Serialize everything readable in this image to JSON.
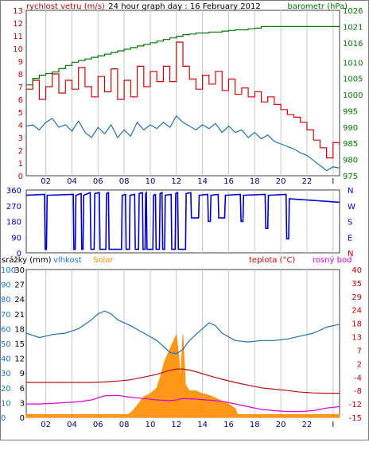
{
  "colors": {
    "wind": "#dd0000",
    "wind_dir": "#0000cc",
    "baro": "#007700",
    "humidity": "#1e73b4",
    "temperature": "#b81010",
    "dewpoint": "#dd00dd",
    "solar": "#ff8c00",
    "label_blue": "#1874cd",
    "grid": "#c8c8c8"
  },
  "chart_data": [
    {
      "type": "line",
      "title": "24 hour graph day : 16 February 2012",
      "x_ticks": [
        "02",
        "04",
        "06",
        "08",
        "10",
        "12",
        "14",
        "16",
        "18",
        "20",
        "22",
        "I"
      ],
      "x_range": [
        0,
        24
      ],
      "y_left_label": "rychlost vetru (m/s)",
      "y_left_ticks": [
        0,
        1,
        2,
        3,
        4,
        5,
        6,
        7,
        8,
        9,
        10,
        11,
        12,
        13
      ],
      "y_left_range": [
        0,
        13
      ],
      "y_right_label": "barometr (hPa)",
      "y_right_ticks": [
        975,
        980,
        985,
        990,
        995,
        1000,
        1005,
        1010,
        1016,
        1021,
        1026
      ],
      "y_right_range": [
        975,
        1026
      ],
      "series": [
        {
          "name": "wind gust",
          "axis": "left",
          "x": [
            0,
            0.5,
            1,
            1.5,
            2,
            2.5,
            3,
            3.5,
            4,
            4.5,
            5,
            5.5,
            6,
            6.5,
            7,
            7.5,
            8,
            8.5,
            9,
            9.5,
            10,
            10.5,
            11,
            11.5,
            12,
            12.5,
            13,
            13.5,
            14,
            14.5,
            15,
            15.5,
            16,
            16.5,
            17,
            17.5,
            18,
            18.5,
            19,
            19.5,
            20,
            20.5,
            21,
            21.5,
            22,
            22.5,
            23,
            23.5,
            24
          ],
          "values": [
            6.8,
            7.5,
            6.0,
            7.0,
            8.0,
            6.5,
            7.5,
            6.8,
            8.5,
            7.0,
            6.2,
            7.8,
            6.6,
            8.4,
            6.0,
            7.5,
            6.2,
            8.6,
            7.0,
            8.2,
            7.4,
            8.6,
            7.4,
            10.5,
            8.6,
            7.6,
            6.8,
            7.9,
            7.2,
            8.2,
            6.7,
            7.6,
            6.4,
            6.9,
            6.2,
            6.6,
            5.8,
            6.2,
            5.6,
            5.2,
            4.8,
            4.6,
            4.2,
            3.6,
            2.8,
            2.2,
            1.4,
            2.6,
            2.4
          ]
        },
        {
          "name": "wind average",
          "axis": "left",
          "x": [
            0,
            0.5,
            1,
            1.5,
            2,
            2.5,
            3,
            3.5,
            4,
            4.5,
            5,
            5.5,
            6,
            6.5,
            7,
            7.5,
            8,
            8.5,
            9,
            9.5,
            10,
            10.5,
            11,
            11.5,
            12,
            12.5,
            13,
            13.5,
            14,
            14.5,
            15,
            15.5,
            16,
            16.5,
            17,
            17.5,
            18,
            18.5,
            19,
            19.5,
            20,
            20.5,
            21,
            21.5,
            22,
            22.5,
            23,
            23.5,
            24
          ],
          "values": [
            3.9,
            4.0,
            3.6,
            4.2,
            4.5,
            3.8,
            4.0,
            3.5,
            4.3,
            3.4,
            3.0,
            3.8,
            3.3,
            4.0,
            3.0,
            3.6,
            3.1,
            4.2,
            3.6,
            4.0,
            3.7,
            4.2,
            3.8,
            4.7,
            4.2,
            3.9,
            3.6,
            4.0,
            3.7,
            4.1,
            3.4,
            3.9,
            3.4,
            3.6,
            3.0,
            3.4,
            2.9,
            3.2,
            2.7,
            2.5,
            2.3,
            2.1,
            1.8,
            1.6,
            1.2,
            0.8,
            0.4,
            0.7,
            0.6
          ]
        },
        {
          "name": "pressure",
          "axis": "right",
          "step": true,
          "x": [
            0,
            0.5,
            1,
            1.5,
            2,
            2.5,
            3,
            3.5,
            4,
            4.5,
            5,
            5.5,
            6,
            6.5,
            7,
            7.5,
            8,
            8.5,
            9,
            9.5,
            10,
            10.5,
            11,
            11.5,
            12,
            12.5,
            13,
            14,
            15,
            15.5,
            16,
            17,
            17.5,
            18,
            19,
            20,
            21,
            22,
            23,
            24
          ],
          "values": [
            1003,
            1005,
            1006,
            1006.5,
            1007,
            1008,
            1009,
            1010,
            1010.5,
            1011,
            1011.5,
            1012,
            1012.5,
            1013,
            1013.5,
            1014,
            1014.5,
            1015,
            1015.5,
            1016,
            1016.5,
            1017,
            1017.5,
            1018,
            1018.5,
            1018.7,
            1019,
            1019.3,
            1019.6,
            1019.8,
            1020,
            1020.3,
            1020.5,
            1021,
            1021,
            1021,
            1021,
            1021,
            1021,
            1021
          ]
        }
      ]
    },
    {
      "type": "line",
      "title": "",
      "y_left_ticks": [
        0,
        90,
        180,
        270,
        360
      ],
      "y_range": [
        0,
        360
      ],
      "y_right_ticks": [
        "N",
        "W",
        "S",
        "E",
        "N"
      ],
      "series": [
        {
          "name": "wind direction",
          "x": [
            0,
            1.4,
            1.45,
            1.55,
            1.6,
            3.6,
            3.65,
            3.75,
            3.8,
            4.2,
            4.25,
            4.35,
            4.4,
            4.9,
            4.95,
            5.2,
            5.25,
            5.6,
            5.65,
            6.1,
            6.15,
            6.3,
            6.35,
            7.3,
            7.35,
            7.6,
            7.65,
            7.9,
            7.95,
            8.3,
            8.35,
            8.6,
            8.65,
            8.9,
            8.95,
            9.1,
            9.15,
            9.2,
            9.25,
            9.7,
            9.75,
            9.9,
            9.95,
            10.2,
            10.25,
            10.4,
            10.45,
            10.6,
            10.65,
            11.1,
            11.15,
            11.4,
            11.45,
            11.6,
            11.65,
            12.2,
            12.25,
            12.6,
            12.65,
            13.2,
            13.25,
            13.9,
            13.95,
            14.1,
            14.15,
            14.7,
            14.75,
            15.2,
            15.25,
            16.4,
            16.45,
            16.6,
            16.65,
            18.3,
            18.35,
            18.5,
            18.55,
            19.9,
            19.95,
            20.1,
            20.15,
            24
          ],
          "values": [
            330,
            335,
            20,
            20,
            330,
            335,
            20,
            20,
            330,
            340,
            20,
            20,
            330,
            345,
            20,
            20,
            340,
            345,
            20,
            20,
            340,
            345,
            20,
            20,
            330,
            335,
            20,
            20,
            330,
            335,
            20,
            20,
            340,
            345,
            20,
            20,
            340,
            345,
            20,
            20,
            330,
            335,
            20,
            20,
            340,
            345,
            20,
            20,
            330,
            335,
            20,
            20,
            340,
            345,
            20,
            20,
            340,
            345,
            200,
            200,
            330,
            335,
            180,
            180,
            330,
            335,
            200,
            200,
            330,
            335,
            180,
            180,
            330,
            335,
            140,
            140,
            330,
            335,
            80,
            80,
            310,
            290
          ]
        }
      ]
    },
    {
      "type": "line",
      "title": "",
      "x_ticks": [
        "02",
        "04",
        "06",
        "08",
        "10",
        "12",
        "14",
        "16",
        "18",
        "20",
        "22",
        "I"
      ],
      "labels_left": [
        "srážky (mm)",
        "vlhkost",
        "Solar"
      ],
      "labels_right": [
        "teplota (°C)",
        "rosný bod"
      ],
      "y_left_humidity_ticks": [
        0,
        10,
        20,
        30,
        40,
        50,
        60,
        70,
        80,
        90,
        100
      ],
      "y_left_rain_ticks": [
        0,
        3,
        6,
        9,
        12,
        15,
        18,
        21,
        24,
        27,
        30
      ],
      "y_right_temp_ticks": [
        -15,
        -12,
        -8,
        -4,
        2,
        7,
        13,
        18,
        24,
        29,
        35,
        40
      ],
      "y_right_range": [
        -15,
        40
      ],
      "series": [
        {
          "name": "humidity",
          "x": [
            0,
            1,
            2,
            3,
            4,
            5,
            5.5,
            6,
            6.5,
            7,
            8,
            9,
            10,
            10.5,
            11,
            11.5,
            12,
            12.5,
            13,
            13.5,
            14,
            14.5,
            15,
            16,
            17,
            18,
            19,
            20,
            21,
            22,
            23,
            24
          ],
          "values": [
            57,
            54,
            56,
            57,
            60,
            66,
            70,
            72,
            70,
            66,
            62,
            57,
            52,
            48,
            44,
            43,
            46,
            52,
            56,
            60,
            64,
            62,
            57,
            52,
            51,
            52,
            52,
            53,
            55,
            57,
            61,
            63
          ]
        },
        {
          "name": "temperature",
          "x": [
            0,
            1,
            2,
            3,
            4,
            5,
            6,
            7,
            8,
            9,
            10,
            10.5,
            11,
            11.5,
            12,
            12.5,
            13,
            14,
            15,
            16,
            17,
            18,
            19,
            20,
            21,
            22,
            23,
            24
          ],
          "values": [
            -2,
            -2,
            -2,
            -2,
            -2,
            -2,
            -1.8,
            -1.5,
            -1,
            0,
            1,
            1.8,
            2.5,
            3,
            3,
            2.6,
            2,
            0.5,
            -0.8,
            -2,
            -3,
            -4,
            -4.5,
            -5,
            -5.6,
            -5.9,
            -6,
            -6
          ]
        },
        {
          "name": "dewpoint",
          "x": [
            0,
            1,
            2,
            3,
            4,
            5,
            6,
            7,
            8,
            9,
            10,
            11,
            11.5,
            12,
            13,
            14,
            15,
            16,
            17,
            18,
            19,
            20,
            21,
            22,
            23,
            24
          ],
          "values": [
            -10,
            -10,
            -9.8,
            -9.5,
            -9.2,
            -8.5,
            -7,
            -6.8,
            -7.5,
            -8,
            -8.5,
            -8.8,
            -8.5,
            -8,
            -8.2,
            -8.6,
            -9,
            -10,
            -11,
            -12,
            -12.5,
            -12.8,
            -12.8,
            -12.5,
            -11.5,
            -11
          ]
        },
        {
          "name": "solar",
          "x": [
            0,
            7.8,
            8,
            8.5,
            9,
            9.5,
            10,
            10.3,
            10.6,
            10.9,
            11.1,
            11.3,
            11.5,
            11.7,
            11.8,
            12,
            12.2,
            12.5,
            13,
            13.5,
            14,
            14.5,
            15,
            15.5,
            16,
            16.2,
            24
          ],
          "values": [
            2,
            2,
            3,
            8,
            14,
            16,
            20,
            28,
            38,
            44,
            48,
            52,
            56,
            40,
            24,
            56,
            22,
            18,
            18,
            16,
            15,
            13,
            11,
            9,
            6,
            2,
            2
          ]
        }
      ]
    }
  ]
}
